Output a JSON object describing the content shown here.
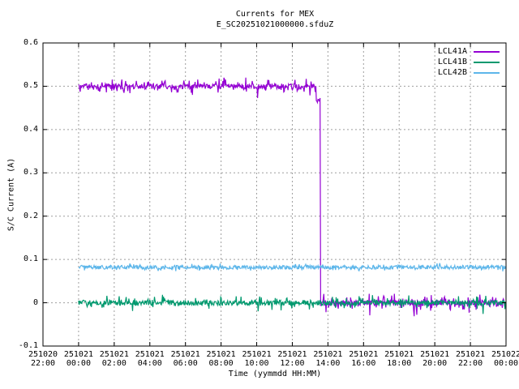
{
  "title": "Currents for MEX",
  "subtitle": "E_SC20251021000000.sfduZ",
  "axes": {
    "xlabel": "Time (yymmdd HH:MM)",
    "ylabel": "S/C Current (A)",
    "ylim": [
      -0.1,
      0.6
    ],
    "yticks": [
      {
        "value": -0.1,
        "label": "-0.1"
      },
      {
        "value": 0.0,
        "label": "0"
      },
      {
        "value": 0.1,
        "label": "0.1"
      },
      {
        "value": 0.2,
        "label": "0.2"
      },
      {
        "value": 0.3,
        "label": "0.3"
      },
      {
        "value": 0.4,
        "label": "0.4"
      },
      {
        "value": 0.5,
        "label": "0.5"
      },
      {
        "value": 0.6,
        "label": "0.6"
      }
    ],
    "xlim_hours": [
      -2,
      24
    ],
    "xticks": [
      {
        "hour": -2,
        "date": "251020",
        "time": "22:00"
      },
      {
        "hour": 0,
        "date": "251021",
        "time": "00:00"
      },
      {
        "hour": 2,
        "date": "251021",
        "time": "02:00"
      },
      {
        "hour": 4,
        "date": "251021",
        "time": "04:00"
      },
      {
        "hour": 6,
        "date": "251021",
        "time": "06:00"
      },
      {
        "hour": 8,
        "date": "251021",
        "time": "08:00"
      },
      {
        "hour": 10,
        "date": "251021",
        "time": "10:00"
      },
      {
        "hour": 12,
        "date": "251021",
        "time": "12:00"
      },
      {
        "hour": 14,
        "date": "251021",
        "time": "14:00"
      },
      {
        "hour": 16,
        "date": "251021",
        "time": "16:00"
      },
      {
        "hour": 18,
        "date": "251021",
        "time": "18:00"
      },
      {
        "hour": 20,
        "date": "251021",
        "time": "20:00"
      },
      {
        "hour": 22,
        "date": "251021",
        "time": "22:00"
      },
      {
        "hour": 24,
        "date": "251022",
        "time": "00:00"
      }
    ],
    "grid_color": "#9e9e9e",
    "border_color": "#000000"
  },
  "chart_data": {
    "type": "line",
    "title": "Currents for MEX",
    "subtitle": "E_SC20251021000000.sfduZ",
    "xlabel": "Time (yymmdd HH:MM)",
    "ylabel": "S/C Current (A)",
    "x_unit": "hours relative to 251021 00:00",
    "x_range": [
      -2,
      24
    ],
    "ylim": [
      -0.1,
      0.6
    ],
    "grid": true,
    "legend_position": "top-right-inside",
    "series": [
      {
        "name": "LCL41A",
        "color": "#9400d3",
        "description": "steady ~0.50 A from 251021 00:00, steps to ~0.47 A at ~13:20, drops sharply to ~0.00 A at ~13:35, stays ~0.00 A until 251022 00:00",
        "noise_amp": 0.006,
        "spike_amp": 0.012,
        "spike_prob": 0.24,
        "rare_amp": 0.028,
        "rare_prob": 0.012,
        "segments": [
          {
            "t0": 0.0,
            "t1": 13.33,
            "value": 0.5
          },
          {
            "t0": 13.33,
            "t1": 13.58,
            "value": 0.468
          },
          {
            "t0": 13.58,
            "t1": 24.0,
            "value": 0.0
          }
        ]
      },
      {
        "name": "LCL41B",
        "color": "#00996e",
        "description": "steady ~0.00 A from 251021 00:00 to 251022 00:00 with downward spikes to ~-0.02 A",
        "noise_amp": 0.006,
        "spike_amp": 0.014,
        "spike_prob": 0.1,
        "rare_amp": 0.022,
        "rare_prob": 0.01,
        "segments": [
          {
            "t0": 0.0,
            "t1": 24.0,
            "value": 0.0
          }
        ]
      },
      {
        "name": "LCL42B",
        "color": "#5db6ea",
        "description": "steady ~0.08 A from 251021 00:00 to 251022 00:00",
        "noise_amp": 0.0045,
        "spike_amp": 0.006,
        "spike_prob": 0.08,
        "rare_amp": 0.008,
        "rare_prob": 0.005,
        "segments": [
          {
            "t0": 0.0,
            "t1": 24.0,
            "value": 0.082
          }
        ]
      }
    ]
  },
  "legend": {
    "entries": [
      {
        "label": "LCL41A",
        "color": "#9400d3"
      },
      {
        "label": "LCL41B",
        "color": "#00996e"
      },
      {
        "label": "LCL42B",
        "color": "#5db6ea"
      }
    ]
  }
}
